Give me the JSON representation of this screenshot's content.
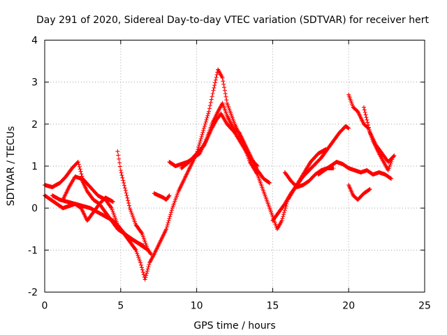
{
  "chart_data": {
    "type": "scatter",
    "title": "Day 291 of 2020, Sidereal Day-to-day VTEC variation (SDTVAR) for receiver hert",
    "xlabel": "GPS time / hours",
    "ylabel": "SDTVAR / TECUs",
    "xlim": [
      0,
      25
    ],
    "ylim": [
      -2,
      4
    ],
    "xticks": [
      "0",
      "5",
      "10",
      "15",
      "20",
      "25"
    ],
    "yticks": [
      "-2",
      "-1",
      "0",
      "1",
      "2",
      "3",
      "4"
    ],
    "grid": true,
    "marker": "+",
    "color": "#ff0000",
    "series": [
      {
        "name": "trace-1",
        "x": [
          0.0,
          0.5,
          1.0,
          1.4,
          1.8,
          2.2,
          2.5,
          3.0,
          3.5,
          4.0,
          4.4,
          4.8,
          5.2,
          5.6,
          6.0,
          6.3,
          6.6,
          6.9,
          7.2,
          7.6,
          8.0,
          8.4,
          8.8,
          9.2,
          9.6,
          10.0,
          10.4,
          10.8,
          11.1,
          11.4,
          11.7,
          12.0,
          12.5,
          13.0,
          13.5,
          14.0,
          14.5,
          15.0,
          15.3,
          15.6,
          16.0,
          16.5,
          17.0,
          17.5,
          18.0,
          18.5
        ],
        "y": [
          0.55,
          0.5,
          0.6,
          0.75,
          0.95,
          1.1,
          0.7,
          0.5,
          0.3,
          0.2,
          0.0,
          -0.4,
          -0.6,
          -0.8,
          -1.0,
          -1.3,
          -1.7,
          -1.3,
          -1.1,
          -0.8,
          -0.5,
          0.0,
          0.4,
          0.7,
          1.0,
          1.3,
          1.8,
          2.3,
          2.8,
          3.3,
          3.1,
          2.5,
          2.0,
          1.6,
          1.1,
          0.8,
          0.3,
          -0.2,
          -0.5,
          -0.3,
          0.2,
          0.5,
          0.8,
          1.1,
          1.3,
          1.4
        ]
      },
      {
        "name": "trace-2",
        "x": [
          0.0,
          0.4,
          0.8,
          1.2,
          1.6,
          2.0,
          2.4,
          2.8,
          3.2,
          3.6,
          4.0,
          4.4,
          4.8,
          5.2,
          5.6,
          6.0,
          6.4,
          6.8
        ],
        "y": [
          0.3,
          0.2,
          0.1,
          0.0,
          0.05,
          0.1,
          0.0,
          -0.3,
          -0.1,
          0.1,
          -0.1,
          -0.3,
          -0.5,
          -0.6,
          -0.7,
          -0.8,
          -0.9,
          -1.0
        ]
      },
      {
        "name": "trace-3",
        "x": [
          0.5,
          1.0,
          1.5,
          2.0,
          2.5,
          3.0,
          3.5,
          4.0,
          4.5,
          5.0,
          5.5,
          6.0,
          6.5
        ],
        "y": [
          0.3,
          0.2,
          0.15,
          0.1,
          0.05,
          0.0,
          -0.1,
          -0.2,
          -0.3,
          -0.5,
          -0.7,
          -0.8,
          -0.9
        ]
      },
      {
        "name": "trace-4",
        "x": [
          1.2,
          1.6,
          2.0,
          2.4,
          2.8,
          3.2,
          3.6,
          4.0,
          4.5
        ],
        "y": [
          0.2,
          0.5,
          0.75,
          0.7,
          0.4,
          0.2,
          0.1,
          0.25,
          0.15
        ]
      },
      {
        "name": "trace-5",
        "x": [
          4.8,
          5.0,
          5.2,
          5.4,
          5.6,
          5.8,
          6.0,
          6.2,
          6.4,
          6.6,
          6.8,
          7.0
        ],
        "y": [
          1.35,
          0.9,
          0.6,
          0.3,
          0.0,
          -0.2,
          -0.4,
          -0.5,
          -0.6,
          -0.8,
          -1.0,
          -1.1
        ]
      },
      {
        "name": "trace-6",
        "x": [
          7.2,
          7.5,
          7.8,
          8.0,
          8.2
        ],
        "y": [
          0.35,
          0.3,
          0.25,
          0.2,
          0.3
        ]
      },
      {
        "name": "trace-7",
        "x": [
          8.2,
          8.6,
          9.0,
          9.4,
          9.8,
          10.2,
          10.6,
          11.0,
          11.4,
          11.7,
          12.0,
          12.4,
          12.8,
          13.2,
          13.6,
          14.0,
          14.4,
          14.8
        ],
        "y": [
          1.1,
          1.0,
          1.05,
          1.1,
          1.2,
          1.3,
          1.6,
          2.0,
          2.3,
          2.5,
          2.2,
          1.9,
          1.8,
          1.5,
          1.2,
          0.9,
          0.7,
          0.6
        ]
      },
      {
        "name": "trace-8",
        "x": [
          9.0,
          9.5,
          10.0,
          10.5,
          11.0,
          11.3,
          11.6,
          12.0,
          12.5,
          13.0,
          13.5,
          14.0
        ],
        "y": [
          0.95,
          1.1,
          1.3,
          1.5,
          1.9,
          2.1,
          2.25,
          2.0,
          1.8,
          1.5,
          1.2,
          1.0
        ]
      },
      {
        "name": "trace-9",
        "x": [
          15.0,
          15.4,
          15.8,
          16.2,
          16.6,
          17.0,
          17.4,
          17.8,
          18.2,
          18.6,
          19.0,
          19.4,
          19.8,
          20.0
        ],
        "y": [
          -0.3,
          -0.1,
          0.1,
          0.35,
          0.55,
          0.75,
          0.9,
          1.05,
          1.2,
          1.4,
          1.6,
          1.8,
          1.95,
          1.9
        ]
      },
      {
        "name": "trace-10",
        "x": [
          15.8,
          16.2,
          16.6,
          17.0,
          17.4,
          17.8,
          18.2,
          18.6,
          19.0
        ],
        "y": [
          0.85,
          0.65,
          0.5,
          0.55,
          0.65,
          0.8,
          0.9,
          0.95,
          0.95
        ]
      },
      {
        "name": "trace-11",
        "x": [
          18.0,
          18.4,
          18.8,
          19.2,
          19.6,
          20.0,
          20.4,
          20.8,
          21.2,
          21.6,
          22.0,
          22.4,
          22.8
        ],
        "y": [
          0.8,
          0.9,
          1.0,
          1.1,
          1.05,
          0.95,
          0.9,
          0.85,
          0.9,
          0.8,
          0.85,
          0.8,
          0.7
        ]
      },
      {
        "name": "trace-12",
        "x": [
          20.0,
          20.3,
          20.6,
          21.0,
          21.3,
          21.6,
          22.0,
          22.3,
          22.6,
          22.9
        ],
        "y": [
          2.7,
          2.4,
          2.3,
          2.0,
          1.9,
          1.6,
          1.3,
          1.1,
          0.9,
          1.2
        ]
      },
      {
        "name": "trace-13",
        "x": [
          21.0,
          21.4,
          21.8,
          22.2,
          22.6,
          23.0
        ],
        "y": [
          2.4,
          1.8,
          1.5,
          1.3,
          1.1,
          1.25
        ]
      },
      {
        "name": "trace-14",
        "x": [
          20.0,
          20.3,
          20.6,
          21.0,
          21.4
        ],
        "y": [
          0.55,
          0.3,
          0.2,
          0.35,
          0.45
        ]
      }
    ]
  }
}
